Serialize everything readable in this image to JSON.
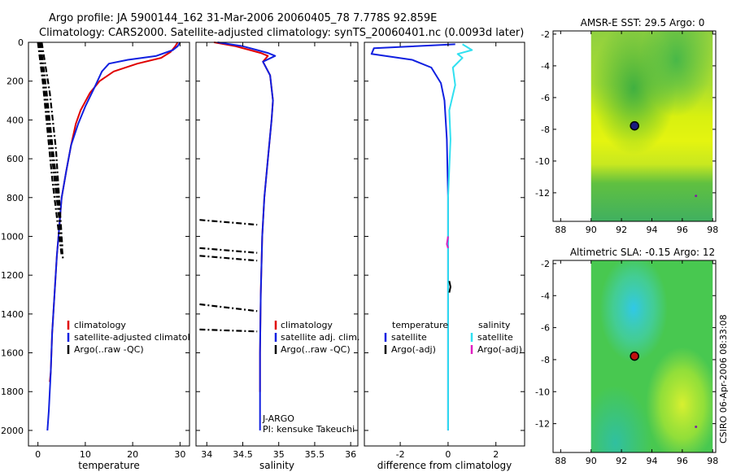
{
  "header": {
    "line1": "Argo profile: JA 5900144_162 31-Mar-2006 20060405_78 7.778S 92.859E",
    "line2": "Climatology: CARS2000. Satellite-adjusted climatology: synTS_20060401.nc (0.0093d later)"
  },
  "side_label": "CSIRO 06-Apr-2006 08:33:08",
  "colors": {
    "climatology": "#e00000",
    "satellite": "#1020e0",
    "argo": "#000000",
    "sal_satellite": "#30e0f0",
    "argo_adj": "#e020c0"
  },
  "chart_data": [
    {
      "type": "line",
      "xlabel": "temperature",
      "ylabel": "",
      "xlim": [
        -2,
        32
      ],
      "ylim": [
        2080,
        0
      ],
      "xticks": [
        0,
        10,
        20,
        30
      ],
      "yticks": [
        0,
        200,
        400,
        600,
        800,
        1000,
        1200,
        1400,
        1600,
        1800,
        2000
      ],
      "legend": {
        "placement": "lower-right",
        "entries": [
          "climatology",
          "satellite-adjusted climatology",
          "Argo(..raw -QC)"
        ]
      },
      "series": [
        {
          "name": "climatology",
          "color": "climatology",
          "x": [
            29.5,
            29,
            28,
            26,
            21,
            16,
            13,
            11,
            9,
            8,
            7,
            6,
            5,
            4.5,
            4,
            3.5,
            3,
            2.7,
            2.5
          ],
          "y": [
            0,
            20,
            50,
            80,
            110,
            150,
            200,
            260,
            350,
            420,
            530,
            660,
            800,
            950,
            1100,
            1300,
            1500,
            1700,
            1750
          ]
        },
        {
          "name": "satellite-adjusted climatology",
          "color": "satellite",
          "x": [
            30,
            29.5,
            28.5,
            25,
            19,
            15,
            13.5,
            12,
            10,
            8.5,
            7,
            6,
            5,
            4.5,
            4,
            3.5,
            3,
            2.7,
            2.3,
            2
          ],
          "y": [
            0,
            20,
            40,
            70,
            90,
            110,
            150,
            230,
            330,
            420,
            530,
            660,
            800,
            950,
            1100,
            1300,
            1500,
            1700,
            1900,
            2000
          ]
        },
        {
          "name": "Argo(..raw -QC)",
          "color": "argo",
          "style": "dashdot",
          "x": [
            0,
            1,
            2,
            3,
            4,
            5
          ],
          "y": [
            0,
            200,
            450,
            700,
            900,
            1100
          ]
        },
        {
          "name": "Argo(..raw -QC)",
          "color": "argo",
          "style": "dashdot",
          "x": [
            0.2,
            1.3,
            2.5,
            3.6,
            4.6,
            5.3
          ],
          "y": [
            0,
            220,
            480,
            730,
            930,
            1120
          ]
        },
        {
          "name": "Argo(..raw -QC)",
          "color": "argo",
          "style": "dashdot",
          "x": [
            0.5,
            1.8,
            3,
            4.2,
            5.2
          ],
          "y": [
            0,
            250,
            520,
            780,
            1060
          ]
        },
        {
          "name": "Argo(..raw -QC)",
          "color": "argo",
          "style": "dashdot",
          "x": [
            0.8,
            2.5,
            3.8,
            5
          ],
          "y": [
            0,
            260,
            550,
            1000
          ]
        }
      ]
    },
    {
      "type": "line",
      "xlabel": "salinity",
      "ylabel": "",
      "xlim": [
        33.85,
        36.1
      ],
      "ylim": [
        2080,
        0
      ],
      "xticks": [
        34,
        34.5,
        35,
        35.5,
        36
      ],
      "xtick_labels": [
        "34",
        "34.5",
        "35",
        "35.5",
        "36"
      ],
      "legend": {
        "placement": "lower-right",
        "entries": [
          "climatology",
          "satellite adj. clim.",
          "Argo(..raw -QC)"
        ]
      },
      "annotations": [
        "J-ARGO",
        "PI: kensuke Takeuchi"
      ],
      "series": [
        {
          "name": "climatology",
          "color": "climatology",
          "x": [
            34.1,
            34.4,
            34.6,
            34.75,
            34.85,
            34.78,
            34.88,
            34.92,
            34.9,
            34.85,
            34.8,
            34.77,
            34.75,
            34.74,
            34.74,
            34.74
          ],
          "y": [
            0,
            20,
            40,
            55,
            70,
            100,
            170,
            300,
            400,
            600,
            800,
            1000,
            1300,
            1600,
            1800,
            1700
          ]
        },
        {
          "name": "satellite adj. clim.",
          "color": "satellite",
          "x": [
            34.15,
            34.5,
            34.7,
            34.85,
            34.95,
            34.78,
            34.88,
            34.92,
            34.9,
            34.85,
            34.8,
            34.77,
            34.75,
            34.74,
            34.74,
            34.74
          ],
          "y": [
            0,
            20,
            40,
            55,
            70,
            100,
            170,
            300,
            400,
            600,
            800,
            1000,
            1300,
            1600,
            1800,
            2000
          ]
        },
        {
          "name": "Argo(..raw -QC)",
          "color": "argo",
          "style": "dashdot",
          "x": [
            33.9,
            34.7
          ],
          "y": [
            915,
            940
          ]
        },
        {
          "name": "Argo(..raw -QC)",
          "color": "argo",
          "style": "dashdot",
          "x": [
            33.9,
            34.7
          ],
          "y": [
            1060,
            1085
          ]
        },
        {
          "name": "Argo(..raw -QC)",
          "color": "argo",
          "style": "dashdot",
          "x": [
            33.9,
            34.7
          ],
          "y": [
            1100,
            1125
          ]
        },
        {
          "name": "Argo(..raw -QC)",
          "color": "argo",
          "style": "dashdot",
          "x": [
            33.9,
            34.7
          ],
          "y": [
            1350,
            1385
          ]
        },
        {
          "name": "Argo(..raw -QC)",
          "color": "argo",
          "style": "dashdot",
          "x": [
            33.9,
            34.7
          ],
          "y": [
            1480,
            1490
          ]
        }
      ]
    },
    {
      "type": "line",
      "xlabel": "difference from climatology",
      "ylabel": "",
      "xlim": [
        -3.5,
        3.2
      ],
      "ylim": [
        2080,
        0
      ],
      "xticks": [
        -2,
        0,
        2
      ],
      "legend": {
        "placement": "lower-center",
        "groups": [
          {
            "heading": "temperature",
            "entries": [
              "satellite",
              "Argo(-adj)"
            ]
          },
          {
            "heading": "salinity",
            "entries": [
              "satellite",
              "Argo(-adj)"
            ]
          }
        ]
      },
      "series": [
        {
          "name": "satellite",
          "color": "satellite",
          "x": [
            0.3,
            -3.1,
            -3.2,
            -1.5,
            -0.7,
            -0.3,
            -0.15,
            -0.05,
            0,
            0,
            0,
            0
          ],
          "y": [
            10,
            30,
            60,
            90,
            130,
            210,
            300,
            500,
            800,
            1200,
            1600,
            2000
          ]
        },
        {
          "name": "satellite",
          "color": "sal_satellite",
          "x": [
            0.6,
            1.0,
            0.4,
            0.6,
            0.2,
            0.3,
            0.05,
            0.1,
            0,
            0,
            0,
            0
          ],
          "y": [
            10,
            40,
            60,
            80,
            130,
            220,
            350,
            500,
            800,
            1200,
            1600,
            2000
          ]
        },
        {
          "name": "Argo(-adj)",
          "color": "argo_adj",
          "x": [
            0,
            -0.05,
            0
          ],
          "y": [
            1000,
            1040,
            1060
          ]
        },
        {
          "name": "Argo(-adj)",
          "color": "argo",
          "x": [
            0.05,
            0.1,
            0.05
          ],
          "y": [
            1230,
            1260,
            1290
          ]
        }
      ]
    },
    {
      "type": "heatmap",
      "title": "AMSR-E SST: 29.5 Argo: 0",
      "xlim": [
        87.5,
        98.2
      ],
      "ylim": [
        -13.8,
        -1.8
      ],
      "xticks": [
        88,
        90,
        92,
        94,
        96,
        98
      ],
      "yticks": [
        -2,
        -4,
        -6,
        -8,
        -10,
        -12
      ],
      "data_region": {
        "x": [
          90,
          98
        ],
        "y": [
          -13.8,
          -1.8
        ]
      },
      "markers": [
        {
          "lon": 92.86,
          "lat": -7.78,
          "kind": "profile"
        },
        {
          "lon": 96.9,
          "lat": -12.2,
          "kind": "dot"
        }
      ]
    },
    {
      "type": "heatmap",
      "title": "Altimetric SLA: -0.15 Argo: 12",
      "xlim": [
        87.5,
        98.2
      ],
      "ylim": [
        -13.8,
        -1.8
      ],
      "xticks": [
        88,
        90,
        92,
        94,
        96,
        98
      ],
      "yticks": [
        -2,
        -4,
        -6,
        -8,
        -10,
        -12
      ],
      "data_region": {
        "x": [
          90,
          98
        ],
        "y": [
          -13.8,
          -1.8
        ]
      },
      "markers": [
        {
          "lon": 92.86,
          "lat": -7.78,
          "kind": "profile"
        },
        {
          "lon": 96.9,
          "lat": -12.2,
          "kind": "dot"
        }
      ]
    }
  ]
}
